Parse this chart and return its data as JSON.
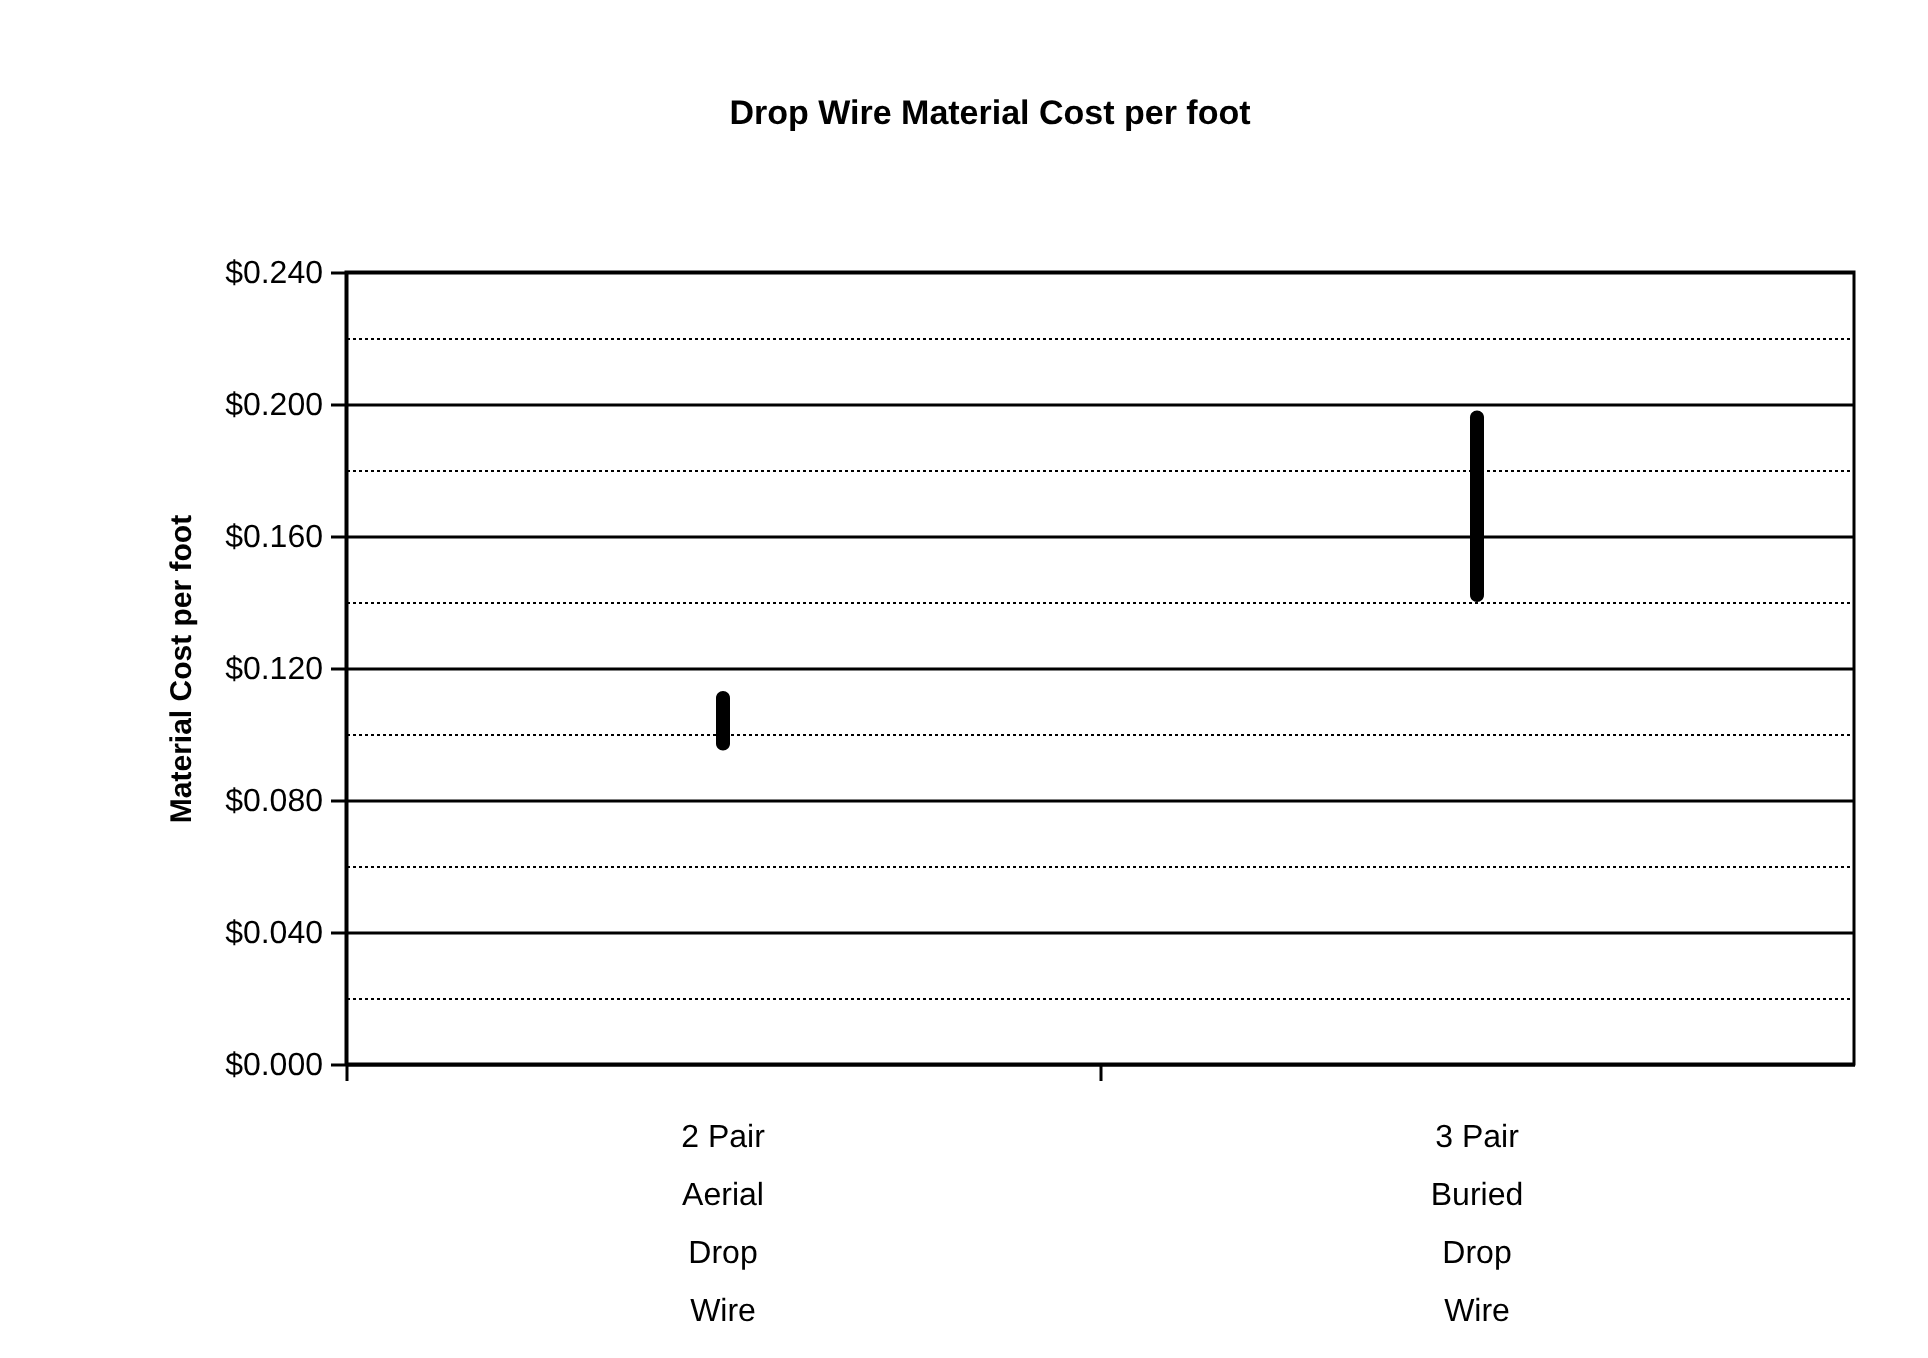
{
  "chart_data": {
    "type": "bar",
    "title": "Drop Wire Material Cost per foot",
    "ylabel": "Material Cost per foot",
    "categories": [
      "2 Pair Aerial Drop Wire",
      "3 Pair Buried Drop Wire"
    ],
    "base": [
      0.095,
      0.14
    ],
    "values": [
      0.018,
      0.058
    ],
    "color": "#000000",
    "ylim": [
      0,
      0.24
    ],
    "yticks": [
      {
        "value": 0,
        "label": "$0.000"
      },
      {
        "value": 0.02,
        "label": null
      },
      {
        "value": 0.04,
        "label": "$0.040"
      },
      {
        "value": 0.06,
        "label": null
      },
      {
        "value": 0.08,
        "label": "$0.080"
      },
      {
        "value": 0.1,
        "label": null
      },
      {
        "value": 0.12,
        "label": "$0.120"
      },
      {
        "value": 0.14,
        "label": null
      },
      {
        "value": 0.16,
        "label": "$0.160"
      },
      {
        "value": 0.18,
        "label": null
      },
      {
        "value": 0.2,
        "label": "$0.200"
      },
      {
        "value": 0.22,
        "label": null
      },
      {
        "value": 0.24,
        "label": "$0.240"
      }
    ],
    "grid": "y"
  }
}
